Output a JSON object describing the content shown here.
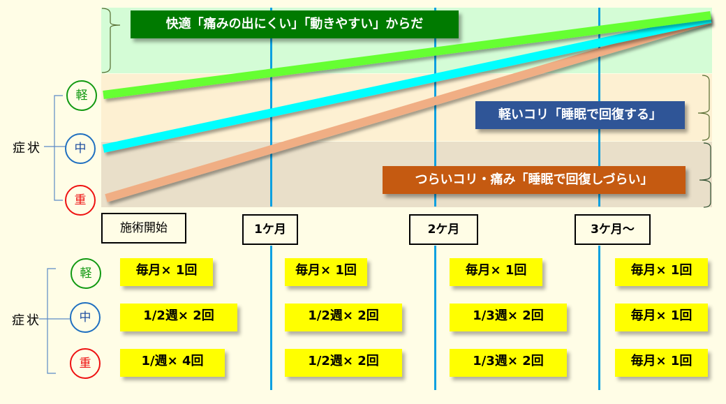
{
  "bands": {
    "comfortable": "#d4fcd6",
    "light": "#fdf0d2",
    "heavy": "#e9dfc9"
  },
  "banners": {
    "comfortable": {
      "text": "快適「痛みの出にくい」「動きやすい」からだ",
      "color": "#007a00"
    },
    "light": {
      "text": "軽いコリ「睡眠で回復する」",
      "color": "#2f5597"
    },
    "heavy": {
      "text": "つらいコリ・痛み「睡眠で回復しづらい」",
      "color": "#c55a11"
    }
  },
  "symptom_label": "症状",
  "levels": [
    {
      "label": "軽",
      "color": "#119911",
      "line_color": "#66ff33"
    },
    {
      "label": "中",
      "color": "#1f6fc0",
      "line_color": "#00ffff"
    },
    {
      "label": "重",
      "color": "#ee1111",
      "line_color": "#f0ae84"
    }
  ],
  "timeline": [
    "施術開始",
    "1ケ月",
    "2ケ月",
    "3ケ月～"
  ],
  "schedule": [
    [
      "毎月× 1回",
      "1/2週× 2回",
      "1/週× 4回"
    ],
    [
      "毎月× 1回",
      "1/2週× 2回",
      "1/2週× 2回"
    ],
    [
      "毎月× 1回",
      "1/3週× 2回",
      "1/3週× 2回"
    ],
    [
      "毎月× 1回",
      "毎月× 1回",
      "毎月× 1回"
    ]
  ],
  "accent_line_color": "#0aa0e0"
}
